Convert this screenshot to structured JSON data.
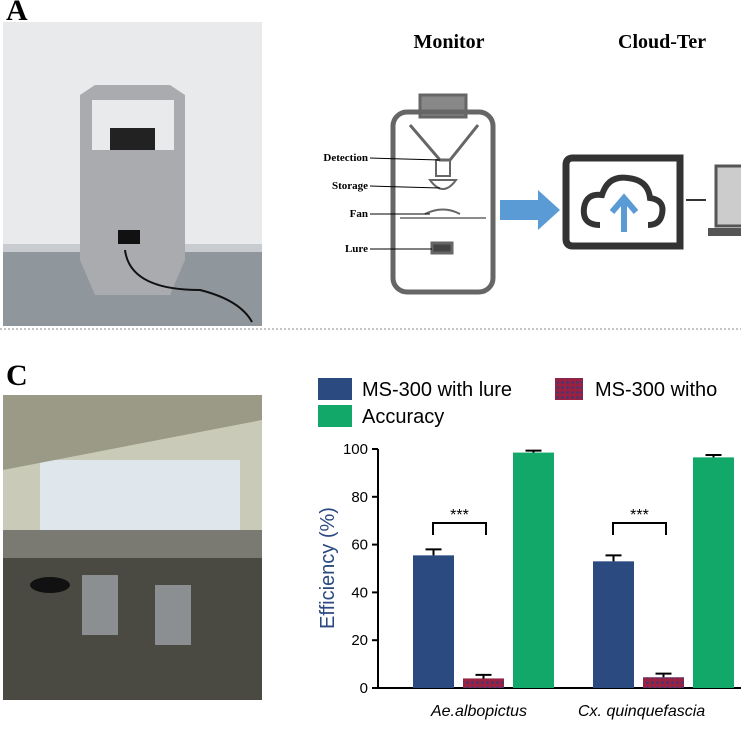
{
  "panels": {
    "a": {
      "label": "A",
      "diagram": {
        "monitor": "Monitor",
        "cloud": "Cloud-Ter",
        "parts": [
          "Detection",
          "Storage",
          "Fan",
          "Lure"
        ]
      }
    },
    "c": {
      "label": "C"
    }
  },
  "chart_data": {
    "type": "bar",
    "ylabel": "Efficiency (%)",
    "categories": [
      "Ae.albopictus",
      "Cx. quinquefascia"
    ],
    "series": [
      {
        "name": "MS-300 with lure",
        "color": "#2b4a80",
        "values": [
          55.5,
          53
        ],
        "errors": [
          2.5,
          2.5
        ]
      },
      {
        "name": "MS-300 witho",
        "color": "#9c2040",
        "values": [
          4,
          4.5
        ],
        "errors": [
          1.5,
          1.5
        ]
      },
      {
        "name": "Accuracy",
        "color": "#12a86a",
        "values": [
          98.5,
          96.5
        ],
        "errors": [
          0.8,
          1
        ]
      }
    ],
    "annotations": [
      "***",
      "***"
    ],
    "ylim": [
      0,
      100
    ],
    "yticks": [
      0,
      20,
      40,
      60,
      80,
      100
    ],
    "grid": false
  }
}
